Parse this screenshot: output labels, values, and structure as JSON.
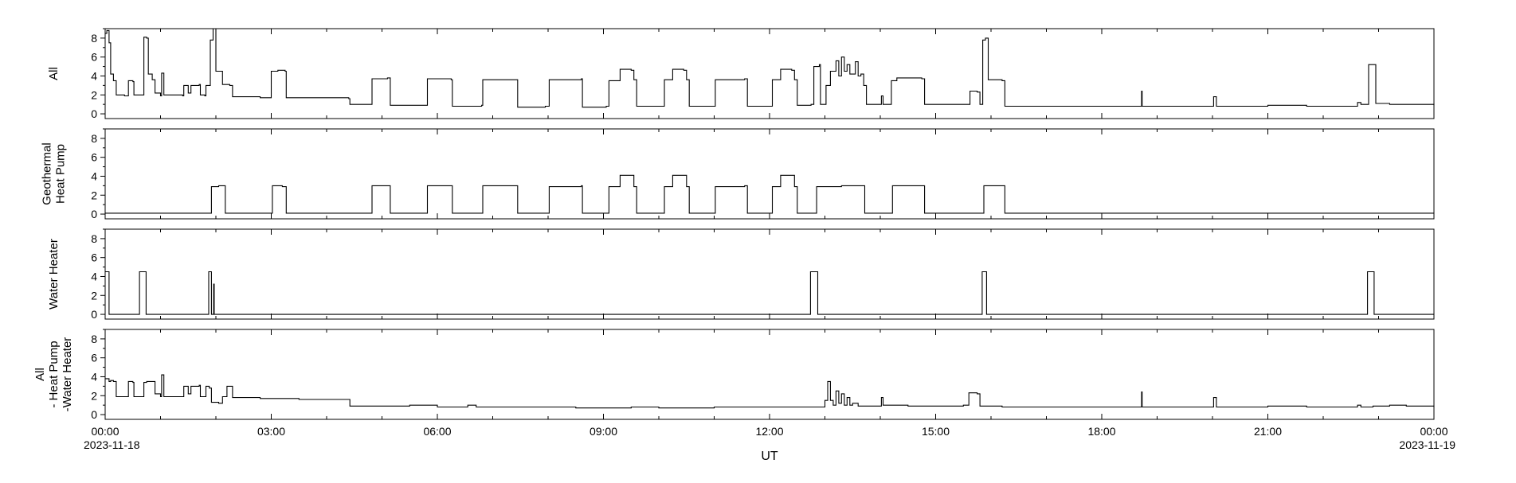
{
  "chart_data": {
    "type": "line",
    "xlabel": "UT",
    "x_tick_labels": [
      "00:00",
      "03:00",
      "06:00",
      "09:00",
      "12:00",
      "15:00",
      "18:00",
      "21:00",
      "00:00"
    ],
    "x_start_date": "2023-11-18",
    "x_end_date": "2023-11-19",
    "xlim_hours": [
      0,
      24
    ],
    "ylim": [
      -0.5,
      9
    ],
    "y_ticks": [
      0,
      2,
      4,
      6,
      8
    ],
    "panels": [
      {
        "ylabel": [
          "All"
        ],
        "step_series": [
          [
            0,
            8.5
          ],
          [
            0.03,
            8.8
          ],
          [
            0.07,
            7.5
          ],
          [
            0.1,
            4.2
          ],
          [
            0.15,
            3.5
          ],
          [
            0.2,
            2.0
          ],
          [
            0.35,
            1.9
          ],
          [
            0.42,
            3.5
          ],
          [
            0.5,
            3.4
          ],
          [
            0.52,
            2.0
          ],
          [
            0.65,
            2.0
          ],
          [
            0.7,
            8.1
          ],
          [
            0.75,
            8.0
          ],
          [
            0.78,
            4.2
          ],
          [
            0.85,
            3.6
          ],
          [
            0.9,
            2.2
          ],
          [
            0.95,
            2.2
          ],
          [
            1.0,
            1.9
          ],
          [
            1.02,
            4.3
          ],
          [
            1.06,
            2.0
          ],
          [
            1.4,
            1.9
          ],
          [
            1.42,
            3.0
          ],
          [
            1.5,
            2.2
          ],
          [
            1.55,
            3.0
          ],
          [
            1.7,
            3.1
          ],
          [
            1.72,
            2.0
          ],
          [
            1.8,
            1.9
          ],
          [
            1.82,
            3.0
          ],
          [
            1.88,
            3.0
          ],
          [
            1.9,
            7.8
          ],
          [
            1.95,
            9.0
          ],
          [
            2.0,
            4.5
          ],
          [
            2.12,
            3.1
          ],
          [
            2.25,
            3.0
          ],
          [
            2.3,
            1.8
          ],
          [
            2.8,
            1.7
          ],
          [
            3.0,
            4.5
          ],
          [
            3.12,
            4.6
          ],
          [
            3.25,
            4.5
          ],
          [
            3.27,
            1.7
          ],
          [
            4.4,
            1.6
          ],
          [
            4.42,
            1.0
          ],
          [
            4.8,
            1.0
          ],
          [
            4.82,
            3.7
          ],
          [
            5.1,
            3.8
          ],
          [
            5.15,
            0.9
          ],
          [
            5.8,
            0.9
          ],
          [
            5.82,
            3.7
          ],
          [
            6.25,
            3.6
          ],
          [
            6.27,
            0.8
          ],
          [
            6.8,
            0.9
          ],
          [
            6.82,
            3.6
          ],
          [
            7.4,
            3.6
          ],
          [
            7.45,
            0.7
          ],
          [
            7.95,
            0.8
          ],
          [
            8.02,
            3.6
          ],
          [
            8.6,
            3.7
          ],
          [
            8.62,
            0.7
          ],
          [
            9.05,
            0.8
          ],
          [
            9.1,
            3.5
          ],
          [
            9.3,
            4.7
          ],
          [
            9.5,
            4.6
          ],
          [
            9.55,
            3.6
          ],
          [
            9.6,
            0.8
          ],
          [
            10.05,
            0.8
          ],
          [
            10.1,
            3.6
          ],
          [
            10.25,
            4.7
          ],
          [
            10.45,
            4.6
          ],
          [
            10.5,
            3.6
          ],
          [
            10.55,
            0.8
          ],
          [
            11.0,
            0.8
          ],
          [
            11.02,
            3.6
          ],
          [
            11.55,
            3.7
          ],
          [
            11.6,
            0.8
          ],
          [
            12.02,
            0.8
          ],
          [
            12.05,
            3.6
          ],
          [
            12.2,
            4.7
          ],
          [
            12.4,
            4.6
          ],
          [
            12.45,
            3.6
          ],
          [
            12.5,
            0.9
          ],
          [
            12.75,
            1.0
          ],
          [
            12.8,
            5.0
          ],
          [
            12.9,
            5.2
          ],
          [
            12.92,
            1.0
          ],
          [
            13.02,
            3.0
          ],
          [
            13.1,
            4.5
          ],
          [
            13.2,
            5.6
          ],
          [
            13.25,
            4.0
          ],
          [
            13.3,
            6.0
          ],
          [
            13.35,
            4.5
          ],
          [
            13.4,
            5.2
          ],
          [
            13.45,
            4.2
          ],
          [
            13.55,
            5.5
          ],
          [
            13.6,
            4.0
          ],
          [
            13.65,
            4.2
          ],
          [
            13.7,
            3.0
          ],
          [
            13.75,
            1.0
          ],
          [
            14.0,
            1.0
          ],
          [
            14.02,
            1.9
          ],
          [
            14.05,
            1.0
          ],
          [
            14.15,
            1.0
          ],
          [
            14.2,
            3.5
          ],
          [
            14.3,
            3.8
          ],
          [
            14.75,
            3.7
          ],
          [
            14.8,
            1.0
          ],
          [
            15.3,
            1.0
          ],
          [
            15.6,
            1.0
          ],
          [
            15.62,
            2.4
          ],
          [
            15.75,
            2.3
          ],
          [
            15.8,
            1.0
          ],
          [
            15.85,
            7.8
          ],
          [
            15.9,
            8.0
          ],
          [
            15.95,
            3.6
          ],
          [
            16.2,
            3.5
          ],
          [
            16.25,
            0.8
          ],
          [
            16.5,
            0.8
          ],
          [
            18.0,
            0.8
          ],
          [
            18.7,
            0.8
          ],
          [
            18.72,
            2.4
          ],
          [
            18.73,
            0.8
          ],
          [
            20.0,
            0.8
          ],
          [
            20.02,
            1.8
          ],
          [
            20.07,
            0.8
          ],
          [
            21.0,
            0.9
          ],
          [
            21.6,
            0.9
          ],
          [
            21.65,
            0.9
          ],
          [
            21.7,
            0.8
          ],
          [
            22.6,
            0.8
          ],
          [
            22.62,
            1.2
          ],
          [
            22.68,
            1.0
          ],
          [
            22.8,
            1.0
          ],
          [
            22.82,
            5.2
          ],
          [
            22.9,
            5.2
          ],
          [
            22.95,
            1.1
          ],
          [
            23.2,
            1.0
          ],
          [
            24.0,
            0.9
          ]
        ]
      },
      {
        "ylabel": [
          "Geothermal",
          "Heat Pump"
        ],
        "step_series": [
          [
            0,
            0.1
          ],
          [
            1.9,
            0.1
          ],
          [
            1.92,
            2.9
          ],
          [
            2.05,
            3.0
          ],
          [
            2.15,
            3.0
          ],
          [
            2.17,
            0.1
          ],
          [
            3.0,
            0.1
          ],
          [
            3.02,
            3.0
          ],
          [
            3.2,
            2.9
          ],
          [
            3.27,
            0.1
          ],
          [
            4.8,
            0.1
          ],
          [
            4.82,
            3.0
          ],
          [
            5.1,
            3.0
          ],
          [
            5.15,
            0.1
          ],
          [
            5.8,
            0.1
          ],
          [
            5.82,
            3.0
          ],
          [
            6.25,
            3.0
          ],
          [
            6.27,
            0.1
          ],
          [
            6.8,
            0.1
          ],
          [
            6.82,
            3.0
          ],
          [
            7.4,
            3.0
          ],
          [
            7.45,
            0.1
          ],
          [
            8.02,
            2.9
          ],
          [
            8.6,
            3.0
          ],
          [
            8.62,
            0.1
          ],
          [
            9.1,
            2.9
          ],
          [
            9.3,
            4.1
          ],
          [
            9.5,
            4.1
          ],
          [
            9.55,
            2.9
          ],
          [
            9.6,
            0.1
          ],
          [
            10.1,
            2.9
          ],
          [
            10.25,
            4.1
          ],
          [
            10.45,
            4.1
          ],
          [
            10.5,
            2.9
          ],
          [
            10.55,
            0.1
          ],
          [
            11.02,
            2.9
          ],
          [
            11.55,
            3.0
          ],
          [
            11.6,
            0.1
          ],
          [
            12.05,
            2.9
          ],
          [
            12.2,
            4.1
          ],
          [
            12.4,
            4.1
          ],
          [
            12.45,
            2.9
          ],
          [
            12.5,
            0.1
          ],
          [
            12.82,
            0.1
          ],
          [
            12.85,
            2.9
          ],
          [
            13.3,
            3.0
          ],
          [
            13.7,
            3.0
          ],
          [
            13.72,
            0.1
          ],
          [
            14.2,
            0.1
          ],
          [
            14.22,
            3.0
          ],
          [
            14.75,
            3.0
          ],
          [
            14.8,
            0.1
          ],
          [
            15.85,
            0.1
          ],
          [
            15.87,
            3.0
          ],
          [
            16.2,
            3.0
          ],
          [
            16.25,
            0.1
          ],
          [
            24.0,
            0.1
          ]
        ]
      },
      {
        "ylabel": [
          "Water Heater"
        ],
        "step_series": [
          [
            0,
            4.5
          ],
          [
            0.05,
            4.5
          ],
          [
            0.07,
            0
          ],
          [
            0.6,
            0
          ],
          [
            0.62,
            4.5
          ],
          [
            0.72,
            4.5
          ],
          [
            0.74,
            0
          ],
          [
            1.85,
            0
          ],
          [
            1.87,
            4.5
          ],
          [
            1.9,
            4.5
          ],
          [
            1.92,
            0
          ],
          [
            1.95,
            0
          ],
          [
            1.96,
            3.2
          ],
          [
            1.97,
            0
          ],
          [
            12.72,
            0
          ],
          [
            12.74,
            4.5
          ],
          [
            12.85,
            4.5
          ],
          [
            12.87,
            0
          ],
          [
            15.82,
            0
          ],
          [
            15.84,
            4.5
          ],
          [
            15.9,
            4.5
          ],
          [
            15.92,
            0
          ],
          [
            22.78,
            0
          ],
          [
            22.8,
            4.5
          ],
          [
            22.9,
            4.5
          ],
          [
            22.92,
            0
          ],
          [
            24.0,
            0
          ]
        ]
      },
      {
        "ylabel": [
          "All",
          "- Heat Pump",
          "-Water Heater"
        ],
        "step_series": [
          [
            0,
            3.8
          ],
          [
            0.07,
            3.5
          ],
          [
            0.1,
            3.6
          ],
          [
            0.15,
            3.5
          ],
          [
            0.2,
            1.9
          ],
          [
            0.35,
            1.9
          ],
          [
            0.42,
            3.5
          ],
          [
            0.5,
            3.4
          ],
          [
            0.52,
            1.9
          ],
          [
            0.65,
            1.9
          ],
          [
            0.7,
            3.4
          ],
          [
            0.75,
            3.5
          ],
          [
            0.85,
            3.5
          ],
          [
            0.9,
            2.2
          ],
          [
            0.95,
            2.2
          ],
          [
            1.0,
            1.9
          ],
          [
            1.02,
            4.2
          ],
          [
            1.06,
            1.9
          ],
          [
            1.4,
            1.9
          ],
          [
            1.42,
            3.0
          ],
          [
            1.5,
            2.2
          ],
          [
            1.55,
            3.0
          ],
          [
            1.7,
            3.1
          ],
          [
            1.72,
            1.9
          ],
          [
            1.8,
            1.9
          ],
          [
            1.82,
            3.0
          ],
          [
            1.88,
            2.8
          ],
          [
            1.92,
            1.3
          ],
          [
            2.05,
            1.2
          ],
          [
            2.12,
            1.9
          ],
          [
            2.2,
            3.0
          ],
          [
            2.3,
            1.8
          ],
          [
            2.8,
            1.7
          ],
          [
            3.5,
            1.6
          ],
          [
            4.4,
            1.6
          ],
          [
            4.42,
            0.9
          ],
          [
            5.2,
            0.9
          ],
          [
            5.5,
            1.0
          ],
          [
            6.0,
            0.8
          ],
          [
            6.5,
            0.8
          ],
          [
            6.55,
            1.0
          ],
          [
            6.7,
            0.8
          ],
          [
            7.5,
            0.8
          ],
          [
            8.0,
            0.8
          ],
          [
            8.5,
            0.7
          ],
          [
            9.0,
            0.7
          ],
          [
            9.5,
            0.8
          ],
          [
            10.0,
            0.7
          ],
          [
            11.0,
            0.8
          ],
          [
            12.0,
            0.8
          ],
          [
            12.95,
            0.8
          ],
          [
            13.0,
            1.5
          ],
          [
            13.05,
            3.5
          ],
          [
            13.1,
            1.5
          ],
          [
            13.15,
            1.0
          ],
          [
            13.2,
            2.5
          ],
          [
            13.25,
            1.2
          ],
          [
            13.3,
            2.2
          ],
          [
            13.35,
            1.0
          ],
          [
            13.4,
            1.8
          ],
          [
            13.45,
            1.0
          ],
          [
            13.5,
            1.2
          ],
          [
            13.6,
            0.9
          ],
          [
            14.0,
            0.9
          ],
          [
            14.02,
            1.8
          ],
          [
            14.05,
            1.0
          ],
          [
            14.5,
            0.9
          ],
          [
            15.0,
            0.9
          ],
          [
            15.5,
            1.0
          ],
          [
            15.6,
            2.3
          ],
          [
            15.75,
            2.2
          ],
          [
            15.8,
            0.9
          ],
          [
            16.2,
            0.8
          ],
          [
            18.0,
            0.8
          ],
          [
            18.7,
            0.8
          ],
          [
            18.72,
            2.4
          ],
          [
            18.73,
            0.8
          ],
          [
            20.0,
            0.8
          ],
          [
            20.02,
            1.8
          ],
          [
            20.07,
            0.8
          ],
          [
            21.0,
            0.9
          ],
          [
            21.6,
            0.9
          ],
          [
            21.7,
            0.8
          ],
          [
            22.6,
            0.8
          ],
          [
            22.62,
            1.0
          ],
          [
            22.68,
            0.8
          ],
          [
            22.9,
            0.9
          ],
          [
            23.2,
            1.0
          ],
          [
            23.5,
            0.9
          ],
          [
            24.0,
            0.8
          ]
        ]
      }
    ]
  }
}
